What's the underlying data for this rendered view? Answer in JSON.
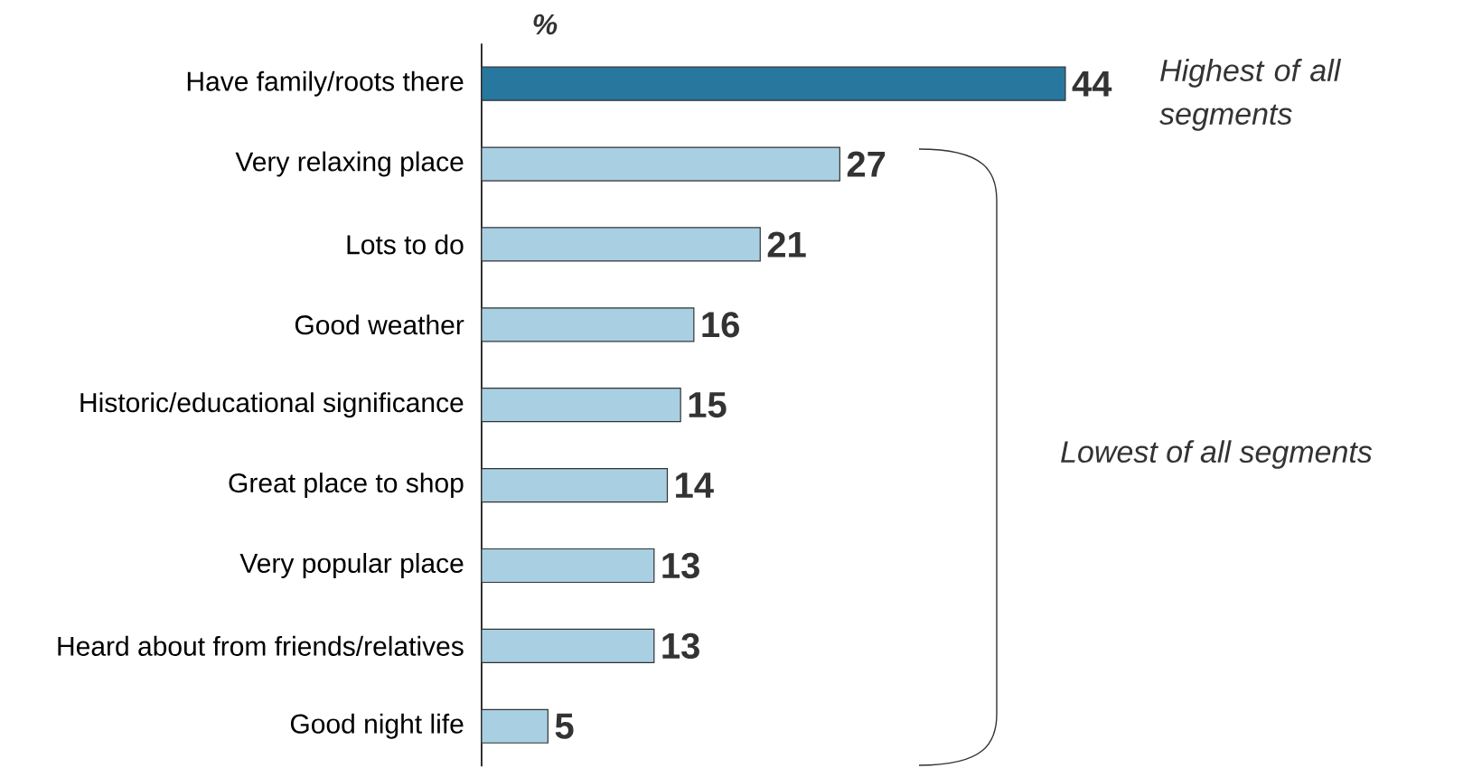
{
  "chart_data": {
    "type": "bar",
    "orientation": "horizontal",
    "xlabel": "%",
    "categories": [
      "Have family/roots there",
      "Very relaxing place",
      "Lots to do",
      "Good weather",
      "Historic/educational significance",
      "Great place to shop",
      "Very popular place",
      "Heard about from friends/relatives",
      "Good night life"
    ],
    "values": [
      44,
      27,
      21,
      16,
      15,
      14,
      13,
      13,
      5
    ],
    "value_labels": [
      "44",
      "27",
      "21",
      "16",
      "15",
      "14",
      "13",
      "13",
      "5"
    ],
    "colors": [
      "#27779f",
      "#a9cfe2",
      "#a9cfe2",
      "#a9cfe2",
      "#a9cfe2",
      "#a9cfe2",
      "#a9cfe2",
      "#a9cfe2",
      "#a9cfe2"
    ],
    "annotations": [
      "Highest of all segments",
      "Lowest of all segments"
    ]
  }
}
